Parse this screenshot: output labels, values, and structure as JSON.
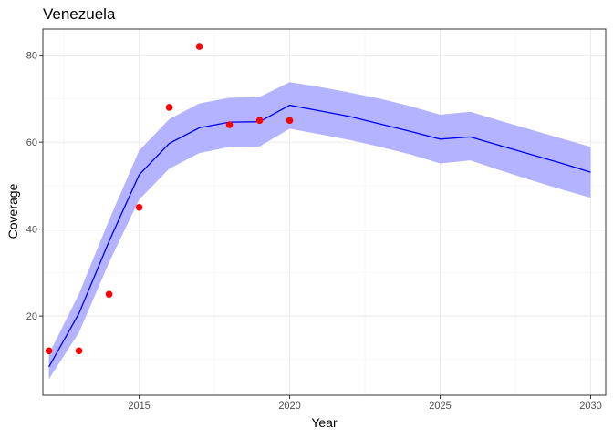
{
  "chart_data": {
    "type": "line",
    "title": "Venezuela",
    "xlabel": "Year",
    "ylabel": "Coverage",
    "xlim": [
      2011.8,
      2030.5
    ],
    "ylim": [
      1.8,
      86
    ],
    "x_ticks": [
      2015,
      2020,
      2025,
      2030
    ],
    "y_ticks": [
      20,
      40,
      60,
      80
    ],
    "grid": true,
    "colors": {
      "line": "#0000ee",
      "band": "#b3b3ff",
      "points": "#ff0000",
      "grid_major": "#ebebeb",
      "grid_minor": "#f5f5f5",
      "border": "#333333"
    },
    "fitted": {
      "x": [
        2012,
        2013,
        2014,
        2015,
        2016,
        2017,
        2018,
        2019,
        2020,
        2021,
        2022,
        2023,
        2024,
        2025,
        2026,
        2027,
        2028,
        2029,
        2030
      ],
      "y": [
        8.3,
        20.6,
        37.2,
        52.5,
        59.7,
        63.3,
        64.6,
        64.7,
        68.5,
        67.2,
        65.9,
        64.2,
        62.5,
        60.7,
        61.2,
        59.2,
        57.2,
        55.2,
        53.1
      ],
      "lower": [
        5.5,
        16.2,
        32.3,
        46.8,
        53.9,
        57.5,
        58.9,
        59.0,
        63.1,
        61.8,
        60.5,
        58.9,
        57.2,
        55.1,
        55.8,
        53.5,
        51.3,
        49.2,
        47.2
      ],
      "upper": [
        11.2,
        25.1,
        42.1,
        58.1,
        65.3,
        68.9,
        70.2,
        70.4,
        73.8,
        72.7,
        71.4,
        70.0,
        68.3,
        66.3,
        67.0,
        64.9,
        62.9,
        60.9,
        58.9
      ]
    },
    "observed": {
      "x": [
        2012,
        2013,
        2014,
        2015,
        2016,
        2017,
        2018,
        2019,
        2020
      ],
      "y": [
        12,
        12,
        25,
        45,
        68,
        82,
        64,
        65,
        65
      ]
    }
  }
}
